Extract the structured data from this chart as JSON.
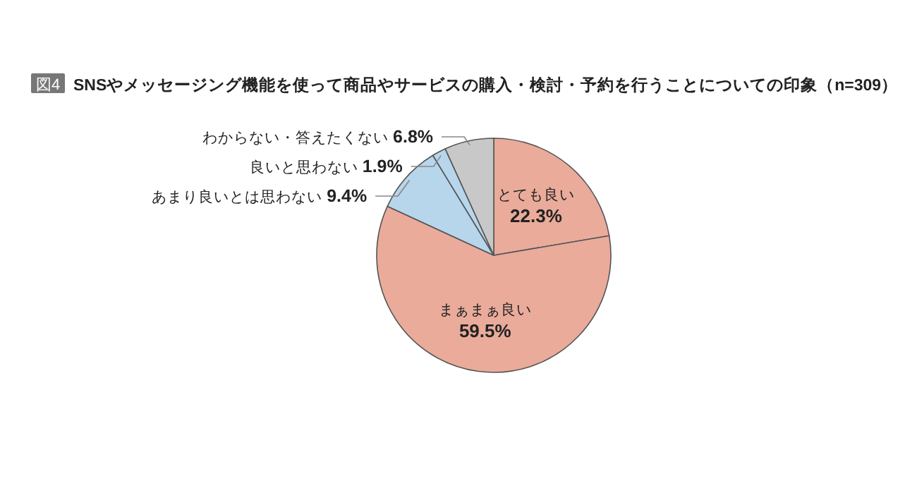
{
  "chart_data": {
    "type": "pie",
    "title": "SNSやメッセージング機能を使って商品やサービスの購入・検討・予約を行うことについての印象（n=309）",
    "annotations": [
      "図4"
    ],
    "categories": [
      "とても良い",
      "まぁまぁ良い",
      "あまり良いとは思わない",
      "良いと思わない",
      "わからない・答えたくない"
    ],
    "values": [
      22.3,
      59.5,
      9.4,
      1.9,
      6.8
    ],
    "value_labels": [
      "22.3%",
      "59.5%",
      "9.4%",
      "1.9%",
      "6.8%"
    ],
    "colors": [
      "#eaab9b",
      "#eaab9b",
      "#b7d6ec",
      "#b7d6ec",
      "#c8c8c8"
    ]
  }
}
